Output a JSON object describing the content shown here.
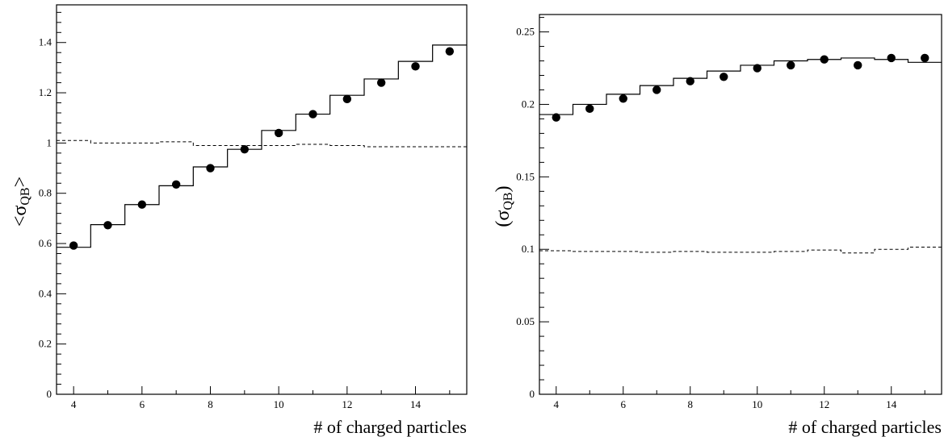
{
  "chart_data": [
    {
      "type": "line",
      "xlabel": "# of charged particles",
      "ylabel": {
        "main": "σ",
        "sub": "QB",
        "open": "<",
        "close": ">"
      },
      "xlim": [
        3.5,
        15.5
      ],
      "ylim": [
        0,
        1.55
      ],
      "xticks": [
        4,
        6,
        8,
        10,
        12,
        14
      ],
      "xtick_labels": [
        "4",
        "6",
        "8",
        "10",
        "12",
        "14"
      ],
      "yticks": [
        0,
        0.2,
        0.4,
        0.6,
        0.8,
        1,
        1.2,
        1.4
      ],
      "ytick_labels": [
        "0",
        "0.2",
        "0.4",
        "0.6",
        "0.8",
        "1",
        "1.2",
        "1.4"
      ],
      "bins": [
        4,
        5,
        6,
        7,
        8,
        9,
        10,
        11,
        12,
        13,
        14,
        15
      ],
      "series": [
        {
          "style": "histogram-solid",
          "values": [
            0.585,
            0.675,
            0.755,
            0.83,
            0.905,
            0.975,
            1.05,
            1.115,
            1.19,
            1.255,
            1.325,
            1.39
          ]
        },
        {
          "style": "histogram-dashed",
          "values": [
            1.01,
            1.0,
            1.0,
            1.005,
            0.99,
            0.99,
            0.99,
            0.995,
            0.99,
            0.985,
            0.985,
            0.985
          ]
        },
        {
          "style": "points",
          "values": [
            0.592,
            0.673,
            0.755,
            0.835,
            0.9,
            0.975,
            1.04,
            1.115,
            1.175,
            1.24,
            1.305,
            1.365
          ]
        }
      ]
    },
    {
      "type": "line",
      "xlabel": "# of charged particles",
      "ylabel": {
        "main": "σ",
        "sub": "QB",
        "open": "(",
        "close": ")"
      },
      "xlim": [
        3.5,
        15.5
      ],
      "ylim": [
        0,
        0.262
      ],
      "xticks": [
        4,
        6,
        8,
        10,
        12,
        14
      ],
      "xtick_labels": [
        "4",
        "6",
        "8",
        "10",
        "12",
        "14"
      ],
      "yticks": [
        0,
        0.05,
        0.1,
        0.15,
        0.2,
        0.25
      ],
      "ytick_labels": [
        "0",
        "0.05",
        "0.1",
        "0.15",
        "0.2",
        "0.25"
      ],
      "bins": [
        4,
        5,
        6,
        7,
        8,
        9,
        10,
        11,
        12,
        13,
        14,
        15
      ],
      "series": [
        {
          "style": "histogram-solid",
          "values": [
            0.193,
            0.2,
            0.207,
            0.213,
            0.218,
            0.223,
            0.227,
            0.23,
            0.231,
            0.232,
            0.231,
            0.229
          ]
        },
        {
          "style": "histogram-dashed",
          "values": [
            0.099,
            0.0985,
            0.0985,
            0.098,
            0.0985,
            0.098,
            0.098,
            0.0985,
            0.0995,
            0.0975,
            0.1,
            0.1015
          ]
        },
        {
          "style": "points",
          "values": [
            0.191,
            0.197,
            0.204,
            0.21,
            0.216,
            0.219,
            0.225,
            0.227,
            0.231,
            0.227,
            0.232,
            0.232
          ]
        }
      ]
    }
  ]
}
